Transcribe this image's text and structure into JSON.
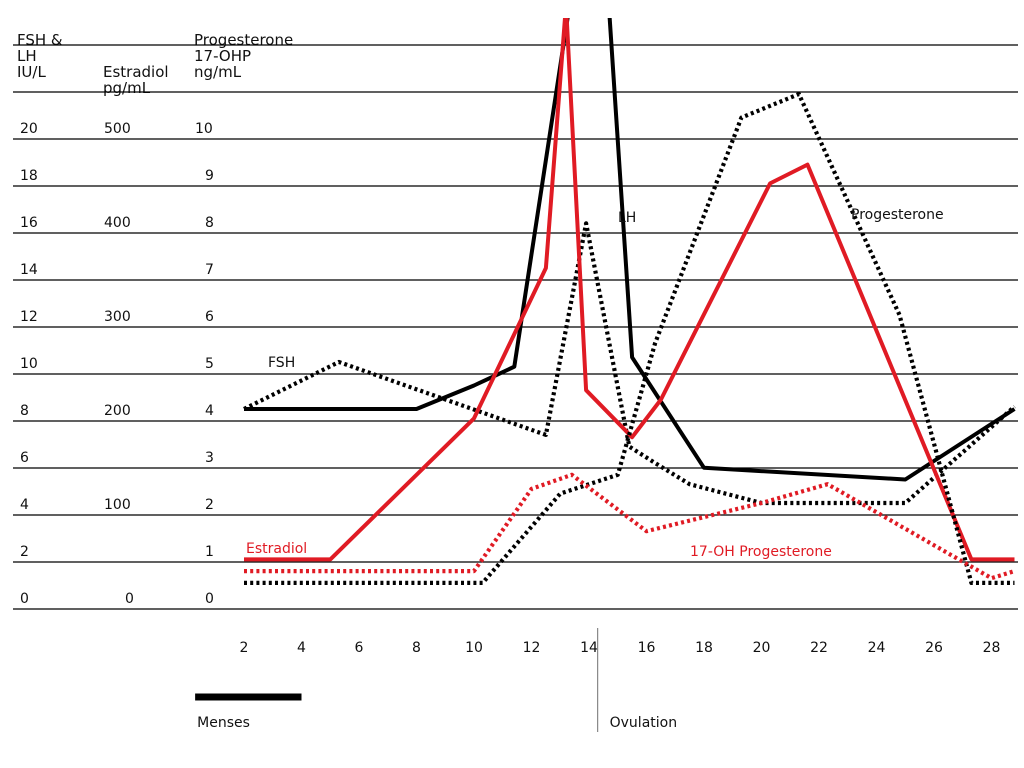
{
  "headers": {
    "fsh_lh": "FSH &\nLH\nIU/L",
    "estradiol": "Estradiol\npg/mL",
    "progesterone": "Progesterone\n17-OHP\nng/mL"
  },
  "chart_data": {
    "type": "line",
    "y_axes": {
      "fsh_lh_iu_l": {
        "ticks": [
          0,
          2,
          4,
          6,
          8,
          10,
          12,
          14,
          16,
          18,
          20
        ],
        "range": [
          0,
          24
        ]
      },
      "estradiol_pg_ml": {
        "ticks": [
          0,
          100,
          200,
          300,
          400,
          500
        ],
        "range": [
          0,
          600
        ]
      },
      "progesterone_17ohp_ng_ml": {
        "ticks": [
          0,
          1,
          2,
          3,
          4,
          5,
          6,
          7,
          8,
          9,
          10
        ],
        "range": [
          0,
          12
        ]
      }
    },
    "x_axis": {
      "ticks": [
        2,
        4,
        6,
        8,
        10,
        12,
        14,
        16,
        18,
        20,
        22,
        24,
        26,
        28
      ],
      "range": [
        2,
        28.8
      ]
    },
    "menses_bar": {
      "label": "Menses",
      "from_day": 0.3,
      "to_day": 4
    },
    "ovulation": {
      "label": "Ovulation",
      "day": 14.3
    },
    "grid": true,
    "series": [
      {
        "name": "LH",
        "style": "solid",
        "color": "#000000",
        "points": [
          [
            2,
            8
          ],
          [
            8,
            8
          ],
          [
            10,
            9
          ],
          [
            11.4,
            9.8
          ],
          [
            13.3,
            25
          ],
          [
            14.7,
            25
          ],
          [
            15.5,
            10.2
          ],
          [
            18,
            5.5
          ],
          [
            25,
            5
          ],
          [
            28.8,
            8
          ]
        ]
      },
      {
        "name": "FSH",
        "style": "dotted",
        "color": "#000000",
        "points": [
          [
            2,
            8
          ],
          [
            5.3,
            10
          ],
          [
            12.5,
            6.9
          ],
          [
            13.9,
            15.9
          ],
          [
            15.4,
            6.4
          ],
          [
            16.3,
            5.7
          ],
          [
            17.5,
            4.8
          ],
          [
            20,
            4
          ],
          [
            25,
            4
          ],
          [
            28.8,
            8.1
          ]
        ]
      },
      {
        "name": "Estradiol",
        "style": "solid",
        "color": "#e01b24",
        "points": [
          [
            2,
            40
          ],
          [
            5,
            40
          ],
          [
            10,
            190
          ],
          [
            12.5,
            350
          ],
          [
            13.2,
            630
          ],
          [
            13.9,
            220
          ],
          [
            15.5,
            170
          ],
          [
            16.5,
            210
          ],
          [
            20.3,
            440
          ],
          [
            21.6,
            460
          ],
          [
            27.3,
            40
          ],
          [
            28.8,
            40
          ]
        ]
      },
      {
        "name": "Progesterone",
        "style": "dotted",
        "color": "#000000",
        "points": [
          [
            2,
            0.3
          ],
          [
            10.3,
            0.3
          ],
          [
            13,
            2.2
          ],
          [
            15,
            2.6
          ],
          [
            16.3,
            5.4
          ],
          [
            19.3,
            10.2
          ],
          [
            21.3,
            10.7
          ],
          [
            24.8,
            6
          ],
          [
            27.3,
            0.3
          ],
          [
            28.8,
            0.3
          ]
        ]
      },
      {
        "name": "17-OH Progesterone",
        "style": "dotted",
        "color": "#e01b24",
        "points": [
          [
            2,
            0.55
          ],
          [
            10,
            0.55
          ],
          [
            12,
            2.3
          ],
          [
            13.4,
            2.6
          ],
          [
            16,
            1.4
          ],
          [
            20,
            2
          ],
          [
            22.3,
            2.4
          ],
          [
            28,
            0.4
          ],
          [
            28.8,
            0.55
          ]
        ]
      }
    ],
    "labels": [
      {
        "text": "FSH",
        "series": "FSH"
      },
      {
        "text": "LH",
        "series": "LH"
      },
      {
        "text": "Progesterone",
        "series": "Progesterone"
      },
      {
        "text": "Estradiol",
        "series": "Estradiol"
      },
      {
        "text": "17-OH Progesterone",
        "series": "17-OH Progesterone"
      }
    ]
  }
}
